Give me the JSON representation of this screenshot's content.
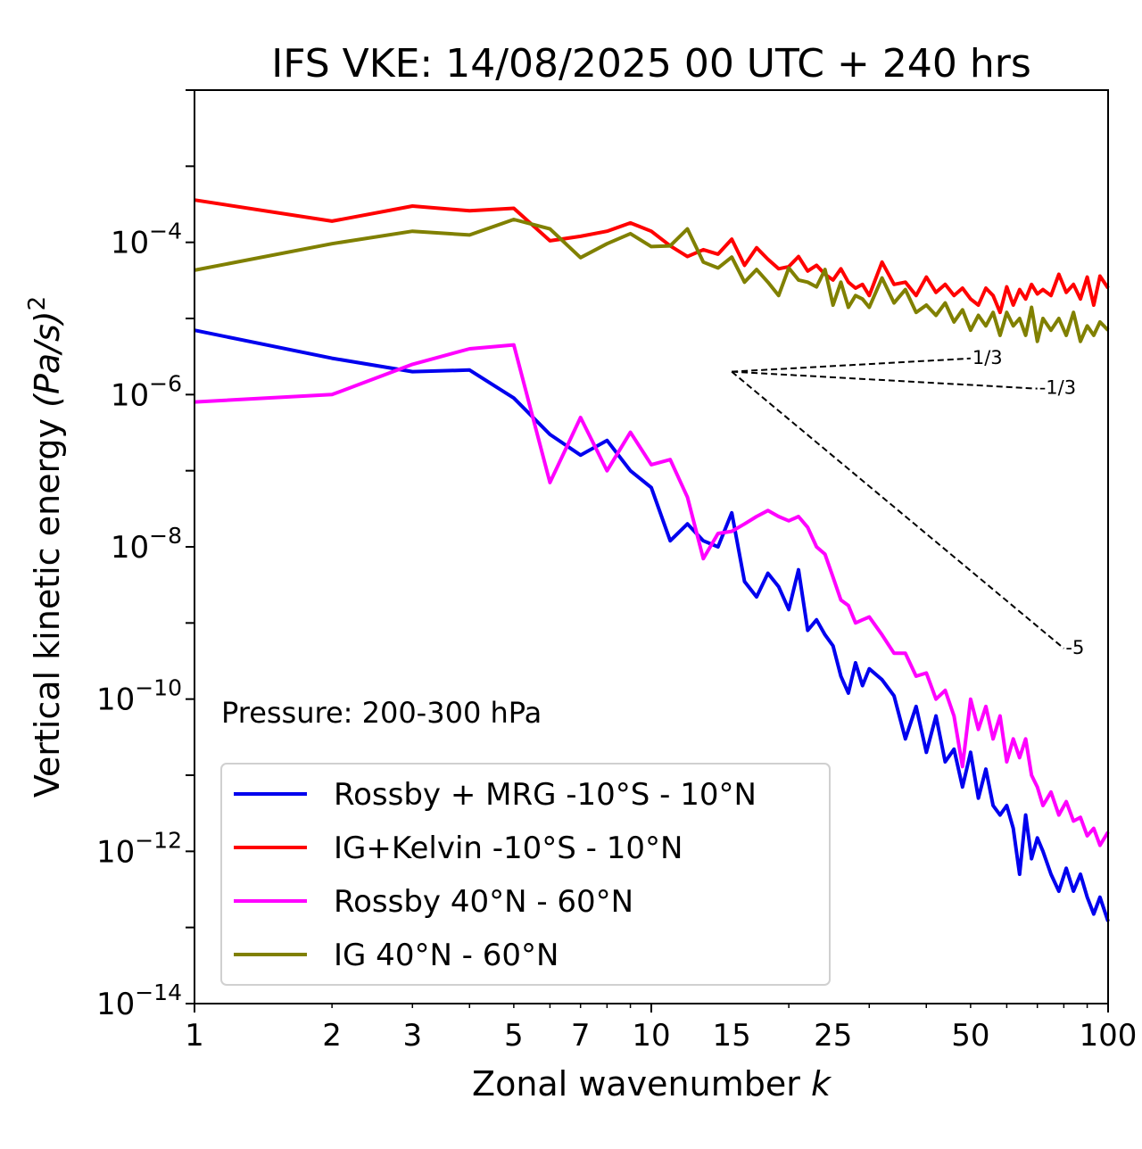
{
  "chart_data": {
    "type": "line",
    "title": "IFS VKE: 14/08/2025 00 UTC + 240 hrs",
    "xlabel": "Zonal wavenumber",
    "xlabel_var": "k",
    "ylabel": "Vertical kinetic energy",
    "ylabel_units": "(Pa/s)",
    "ylabel_units_exp": "2",
    "xscale": "log",
    "yscale": "log",
    "xlim": [
      1,
      100
    ],
    "ylim": [
      1e-14,
      0.01
    ],
    "xticks": [
      1,
      2,
      3,
      5,
      7,
      10,
      15,
      25,
      50,
      100
    ],
    "xtick_labels": [
      "1",
      "2",
      "3",
      "5",
      "7",
      "10",
      "15",
      "25",
      "50",
      "100"
    ],
    "yticks": [
      -14,
      -12,
      -10,
      -8,
      -6,
      -4
    ],
    "ytick_base": "10",
    "ytick_exponents": [
      "−14",
      "−12",
      "−10",
      "−8",
      "−6",
      "−4"
    ],
    "annotation": "Pressure: 200-300 hPa",
    "legend_position": "lower-left",
    "series": [
      {
        "name": "Rossby + MRG -10°S - 10°N",
        "color": "#0000ee",
        "x": [
          1,
          2,
          3,
          4,
          5,
          6,
          7,
          8,
          9,
          10,
          11,
          12,
          13,
          14,
          15,
          16,
          17,
          18,
          19,
          20,
          21,
          22,
          23,
          24,
          25,
          26,
          27,
          28,
          29,
          30,
          32,
          34,
          36,
          38,
          40,
          42,
          44,
          46,
          48,
          50,
          52,
          54,
          56,
          58,
          60,
          62,
          64,
          66,
          68,
          70,
          72,
          75,
          78,
          81,
          84,
          87,
          90,
          93,
          96,
          100
        ],
        "y": [
          7e-06,
          3e-06,
          2e-06,
          2.1e-06,
          9e-07,
          3e-07,
          1.6e-07,
          2.5e-07,
          1e-07,
          6e-08,
          1.2e-08,
          2e-08,
          1.2e-08,
          1e-08,
          2.8e-08,
          3.5e-09,
          2.2e-09,
          4.5e-09,
          3e-09,
          1.5e-09,
          5e-09,
          8e-10,
          1.1e-09,
          7e-10,
          5e-10,
          2e-10,
          1.2e-10,
          3e-10,
          1.5e-10,
          2.5e-10,
          1.8e-10,
          1.1e-10,
          3e-11,
          8e-11,
          2e-11,
          6e-11,
          1.5e-11,
          2.2e-11,
          7e-12,
          2e-11,
          5e-12,
          1.2e-11,
          4e-12,
          3e-12,
          4e-12,
          2e-12,
          5e-13,
          3e-12,
          8e-13,
          1.5e-12,
          1e-12,
          5e-13,
          3e-13,
          6e-13,
          3e-13,
          5e-13,
          2.5e-13,
          1.5e-13,
          2.5e-13,
          1.2e-13
        ]
      },
      {
        "name": "IG+Kelvin -10°S - 10°N",
        "color": "#ff0000",
        "x": [
          1,
          2,
          3,
          4,
          5,
          6,
          7,
          8,
          9,
          10,
          11,
          12,
          13,
          14,
          15,
          16,
          17,
          18,
          19,
          20,
          21,
          22,
          23,
          24,
          25,
          26,
          27,
          28,
          29,
          30,
          32,
          34,
          36,
          38,
          40,
          42,
          44,
          46,
          48,
          50,
          52,
          54,
          56,
          58,
          60,
          62,
          64,
          66,
          68,
          70,
          72,
          75,
          78,
          81,
          84,
          87,
          90,
          93,
          96,
          100
        ],
        "y": [
          0.00036,
          0.00019,
          0.0003,
          0.00026,
          0.00028,
          0.000105,
          0.00012,
          0.00014,
          0.00018,
          0.00014,
          9e-05,
          6.5e-05,
          8e-05,
          7e-05,
          0.00011,
          5e-05,
          8.5e-05,
          6e-05,
          4.5e-05,
          4.8e-05,
          6.5e-05,
          4.2e-05,
          5e-05,
          3.8e-05,
          3.2e-05,
          4.5e-05,
          3e-05,
          2.5e-05,
          2.8e-05,
          2e-05,
          5.5e-05,
          2.8e-05,
          3e-05,
          2e-05,
          3.5e-05,
          2.2e-05,
          2.8e-05,
          2e-05,
          2.5e-05,
          1.8e-05,
          1.5e-05,
          2.5e-05,
          2e-05,
          1.2e-05,
          2.6e-05,
          1.5e-05,
          2.4e-05,
          1.8e-05,
          2.8e-05,
          2.1e-05,
          2.4e-05,
          2e-05,
          3.8e-05,
          2.2e-05,
          2.8e-05,
          1.8e-05,
          3.5e-05,
          1.5e-05,
          3.6e-05,
          2.5e-05
        ]
      },
      {
        "name": "Rossby 40°N - 60°N",
        "color": "#ff00ff",
        "x": [
          1,
          2,
          3,
          4,
          5,
          6,
          7,
          8,
          9,
          10,
          11,
          12,
          13,
          14,
          15,
          16,
          17,
          18,
          19,
          20,
          21,
          22,
          23,
          24,
          25,
          26,
          27,
          28,
          29,
          30,
          32,
          34,
          36,
          38,
          40,
          42,
          44,
          46,
          48,
          50,
          52,
          54,
          56,
          58,
          60,
          62,
          64,
          66,
          68,
          70,
          72,
          75,
          78,
          81,
          84,
          87,
          90,
          93,
          96,
          100
        ],
        "y": [
          8e-07,
          1e-06,
          2.5e-06,
          4e-06,
          4.5e-06,
          7e-08,
          5e-07,
          1e-07,
          3.2e-07,
          1.2e-07,
          1.4e-07,
          4.5e-08,
          7e-09,
          1.5e-08,
          1.6e-08,
          2e-08,
          2.5e-08,
          3e-08,
          2.5e-08,
          2.2e-08,
          2.5e-08,
          1.8e-08,
          1e-08,
          8e-09,
          4e-09,
          2e-09,
          1.7e-09,
          1e-09,
          1.1e-09,
          1.2e-09,
          7e-10,
          4e-10,
          4e-10,
          2e-10,
          2.2e-10,
          1e-10,
          1.3e-10,
          6e-11,
          1.3e-11,
          1e-10,
          4e-11,
          8e-11,
          3e-11,
          6e-11,
          1.5e-11,
          3e-11,
          1.7e-11,
          3e-11,
          1e-11,
          7e-12,
          4e-12,
          6e-12,
          3e-12,
          4.5e-12,
          2.5e-12,
          2.8e-12,
          1.6e-12,
          2e-12,
          1.2e-12,
          1.8e-12
        ]
      },
      {
        "name": "IG 40°N - 60°N",
        "color": "#808000",
        "x": [
          1,
          2,
          3,
          4,
          5,
          6,
          7,
          8,
          9,
          10,
          11,
          12,
          13,
          14,
          15,
          16,
          17,
          18,
          19,
          20,
          21,
          22,
          23,
          24,
          25,
          26,
          27,
          28,
          29,
          30,
          32,
          34,
          36,
          38,
          40,
          42,
          44,
          46,
          48,
          50,
          52,
          54,
          56,
          58,
          60,
          62,
          64,
          66,
          68,
          70,
          72,
          75,
          78,
          81,
          84,
          87,
          90,
          93,
          96,
          100
        ],
        "y": [
          4.3e-05,
          9.6e-05,
          0.00014,
          0.000125,
          0.0002,
          0.00015,
          6.3e-05,
          9.6e-05,
          0.00013,
          8.8e-05,
          9e-05,
          0.00015,
          5.5e-05,
          4.6e-05,
          6.4e-05,
          3e-05,
          4.4e-05,
          3e-05,
          2e-05,
          4.6e-05,
          3.2e-05,
          3e-05,
          2.6e-05,
          4.4e-05,
          1.5e-05,
          3e-05,
          1.4e-05,
          2e-05,
          1.8e-05,
          1.4e-05,
          3.4e-05,
          1.6e-05,
          2.4e-05,
          1.2e-05,
          1.5e-05,
          1.1e-05,
          1.6e-05,
          9e-06,
          1.3e-05,
          7e-06,
          1.1e-05,
          8e-06,
          1.2e-05,
          6e-06,
          1.2e-05,
          8e-06,
          1e-05,
          6e-06,
          1.4e-05,
          5e-06,
          1e-05,
          7e-06,
          1e-05,
          6e-06,
          1.2e-05,
          5e-06,
          8e-06,
          6e-06,
          9e-06,
          7e-06
        ]
      }
    ],
    "slope_lines": [
      {
        "label": "1/3",
        "slope": 0.3333,
        "x_start": 15,
        "x_end": 50,
        "y_start": 2e-06
      },
      {
        "label": "-1/3",
        "slope": -0.3333,
        "x_start": 15,
        "x_end": 70,
        "y_start": 2e-06
      },
      {
        "label": "-5",
        "slope": -5,
        "x_start": 15,
        "x_end": 80,
        "y_start": 2e-06
      }
    ]
  }
}
